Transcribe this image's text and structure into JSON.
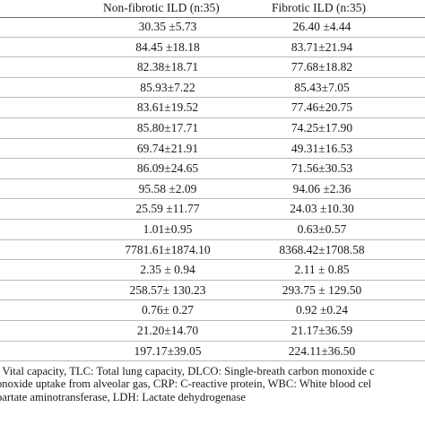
{
  "headers": {
    "col1": "Non-fibrotic ILD (n:35)",
    "col2": "Fibrotic ILD (n:35)"
  },
  "rows": [
    {
      "a": "30.35 ±5.73",
      "b": "26.40 ±4.44"
    },
    {
      "a": "84.45 ±18.18",
      "b": "83.71±21.94"
    },
    {
      "a": "82.38±18.71",
      "b": "77.68±18.82"
    },
    {
      "a": "85.93±7.22",
      "b": "85.43±7.05"
    },
    {
      "a": "83.61±19.52",
      "b": "77.46±20.75"
    },
    {
      "a": "85.80±17.71",
      "b": "74.25±17.90"
    },
    {
      "a": "69.74±21.91",
      "b": "49.31±16.53"
    },
    {
      "a": "86.09±24.65",
      "b": "71.56±30.53"
    },
    {
      "a": "95.58 ±2.09",
      "b": "94.06 ±2.36"
    },
    {
      "a": "25.59 ±11.77",
      "b": "24.03 ±10.30"
    },
    {
      "a": "1.01±0.95",
      "b": "0.63±0.57"
    },
    {
      "a": "7781.61±1874.10",
      "b": "8368.42±1708.58"
    },
    {
      "a": "2.35 ± 0.94",
      "b": "2.11 ± 0.85"
    },
    {
      "a": "258.57± 130.23",
      "b": "293.75 ± 129.50"
    },
    {
      "a": "0.76± 0.27",
      "b": "0.92 ±0.24"
    },
    {
      "a": "21.20±14.70",
      "b": "21.17±36.59"
    },
    {
      "a": "197.17±39.05",
      "b": "224.11±36.50"
    }
  ],
  "footnote": {
    "line1": ": Vital capacity, TLC: Total lung capacity, DLCO: Single-breath carbon monoxide c",
    "line2": "onoxide uptake from alveolar gas, CRP: C-reactive protein, WBC: White blood cel",
    "line3": "partate aminotransferase, LDH: Lactate dehydrogenase"
  }
}
